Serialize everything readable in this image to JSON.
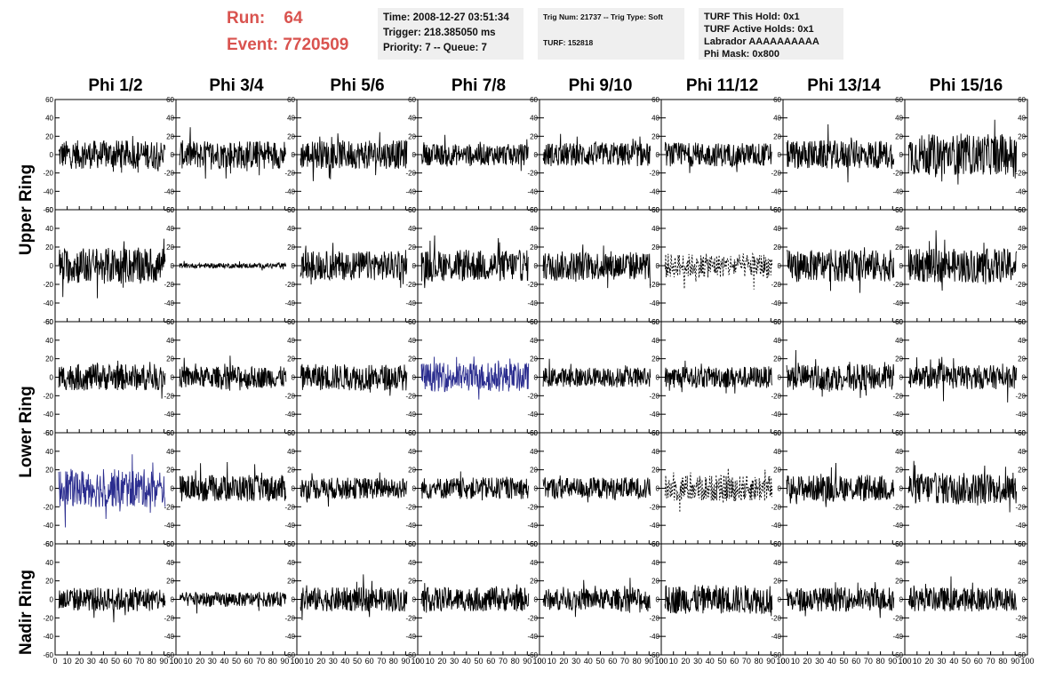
{
  "header": {
    "run_label": "Run:",
    "run_value": "64",
    "event_label": "Event:",
    "event_value": "7720509"
  },
  "info_boxes": {
    "time": "Time: 2008-12-27 03:51:34",
    "trigger": "Trigger: 218.385050 ms",
    "priority": "Priority: 7 -- Queue: 7",
    "trig_num": "Trig Num: 21737 -- Trig Type: Soft",
    "turf": "TURF: 152818",
    "turf_hold": "TURF This Hold: 0x1",
    "turf_active": "TURF Active Holds: 0x1",
    "labrador": "Labrador AAAAAAAAAA",
    "phi_mask": "Phi Mask: 0x800"
  },
  "columns": [
    "Phi 1/2",
    "Phi 3/4",
    "Phi 5/6",
    "Phi 7/8",
    "Phi 9/10",
    "Phi 11/12",
    "Phi 13/14",
    "Phi 15/16"
  ],
  "row_labels": {
    "upper": "Upper Ring",
    "lower": "Lower Ring",
    "nadir": "Nadir Ring"
  },
  "colors": {
    "header_red": "#d9534f",
    "trace_black": "#000000",
    "trace_blue": "#2b2d8f",
    "box_gray": "#efefef"
  },
  "chart_data": {
    "type": "line",
    "panel_grid": {
      "rows": 5,
      "cols": 8
    },
    "xlim": [
      0,
      100
    ],
    "ylim": [
      -60,
      60
    ],
    "x_ticks": [
      0,
      10,
      20,
      30,
      40,
      50,
      60,
      70,
      80,
      90,
      100
    ],
    "x_tick_labels": [
      "0",
      "10",
      "20",
      "30",
      "40",
      "50",
      "60",
      "70",
      "80",
      "90",
      "100"
    ],
    "y_ticks": [
      -60,
      -40,
      -20,
      0,
      20,
      40,
      60
    ],
    "y_tick_labels": [
      "-60",
      "-40",
      "-20",
      "0",
      "20",
      "40",
      "60"
    ],
    "panel_styles": [
      [
        "black",
        "black",
        "black",
        "black",
        "black",
        "black",
        "black",
        "black"
      ],
      [
        "black",
        "black",
        "black",
        "black",
        "black",
        "dashed",
        "black",
        "black"
      ],
      [
        "black",
        "black",
        "black",
        "blue",
        "black",
        "black",
        "black",
        "black"
      ],
      [
        "blue",
        "black",
        "black",
        "black",
        "black",
        "dashed",
        "black",
        "black"
      ],
      [
        "black",
        "black",
        "black",
        "black",
        "black",
        "black",
        "black",
        "black"
      ]
    ],
    "panel_amplitude": [
      [
        12,
        12,
        12,
        9,
        10,
        10,
        12,
        17
      ],
      [
        15,
        2,
        12,
        13,
        12,
        10,
        13,
        14
      ],
      [
        11,
        9,
        11,
        12,
        8,
        9,
        11,
        10
      ],
      [
        16,
        11,
        9,
        9,
        9,
        11,
        11,
        13
      ],
      [
        10,
        6,
        10,
        10,
        9,
        12,
        10,
        10
      ]
    ]
  }
}
